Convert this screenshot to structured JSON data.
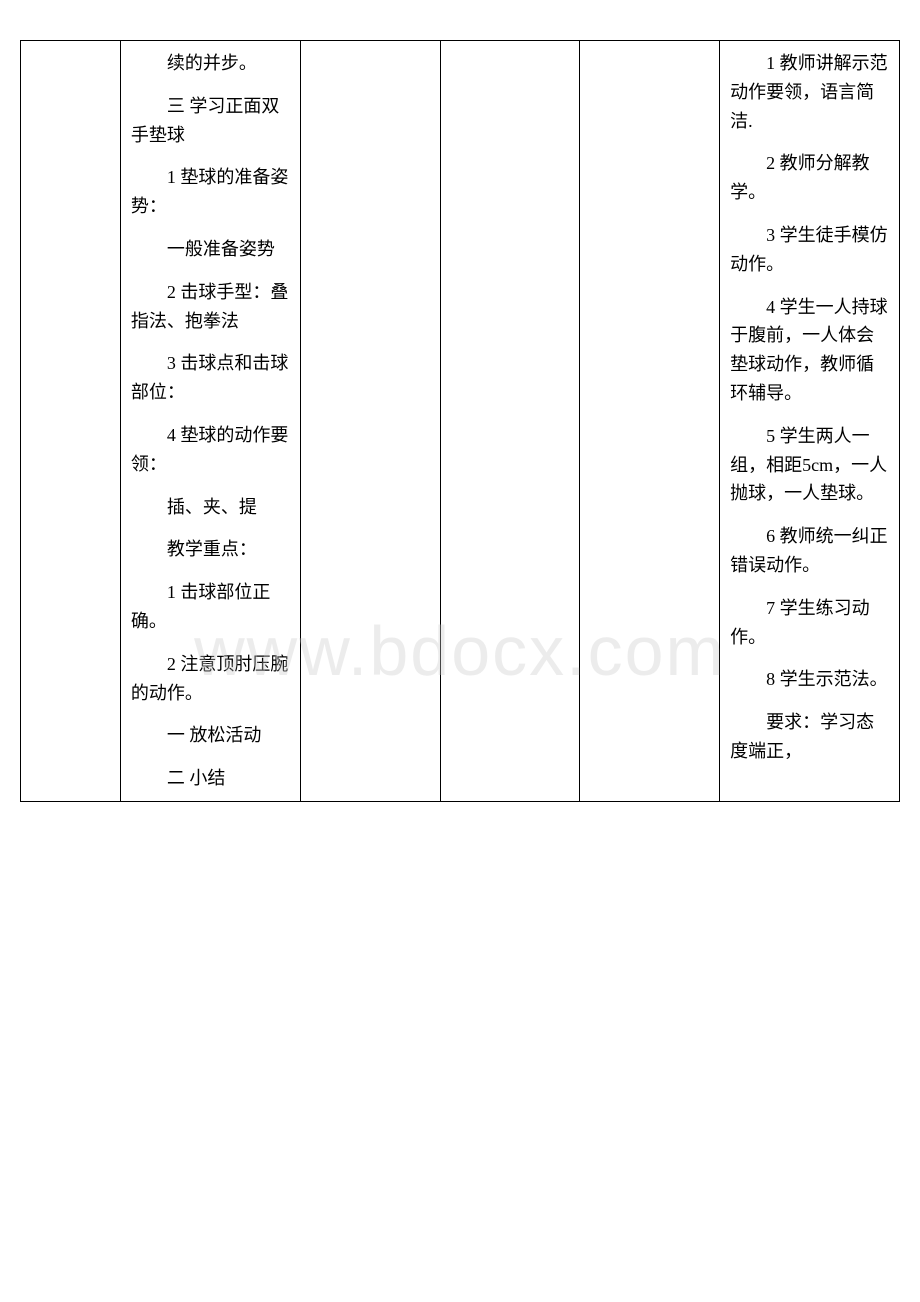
{
  "watermark": "www.bdocx.com",
  "leftColumn": {
    "p1": "续的并步。",
    "p2": "三 学习正面双手垫球",
    "p3": "1 垫球的准备姿势：",
    "p4": "一般准备姿势",
    "p5": "2 击球手型：叠指法、抱拳法",
    "p6": "3 击球点和击球部位：",
    "p7": "4 垫球的动作要领：",
    "p8": "插、夹、提",
    "p9": "教学重点：",
    "p10": "1 击球部位正确。",
    "p11": "2 注意顶肘压腕的动作。",
    "p12": "一 放松活动",
    "p13": "二 小结"
  },
  "rightColumn": {
    "p1": "1 教师讲解示范动作要领，语言简洁.",
    "p2": "2 教师分解教学。",
    "p3": "3 学生徒手模仿动作。",
    "p4": "4 学生一人持球于腹前，一人体会垫球动作，教师循环辅导。",
    "p5": "5 学生两人一组，相距5cm，一人抛球，一人垫球。",
    "p6": "6 教师统一纠正错误动作。",
    "p7": "7 学生练习动作。",
    "p8": "8 学生示范法。",
    "p9": "要求：学习态度端正，"
  }
}
